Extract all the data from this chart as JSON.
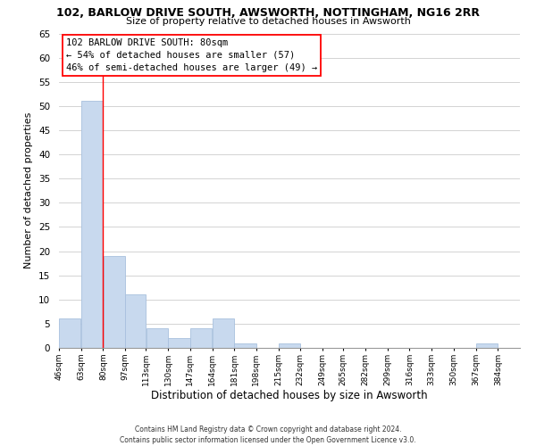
{
  "title_line1": "102, BARLOW DRIVE SOUTH, AWSWORTH, NOTTINGHAM, NG16 2RR",
  "title_line2": "Size of property relative to detached houses in Awsworth",
  "xlabel": "Distribution of detached houses by size in Awsworth",
  "ylabel": "Number of detached properties",
  "bar_left_edges": [
    46,
    63,
    80,
    97,
    113,
    130,
    147,
    164,
    181,
    198,
    215,
    232,
    249,
    265,
    282,
    299,
    316,
    333,
    350,
    367
  ],
  "bar_widths": [
    17,
    17,
    17,
    16,
    17,
    17,
    17,
    17,
    17,
    17,
    17,
    17,
    16,
    17,
    17,
    17,
    17,
    17,
    17,
    17
  ],
  "bar_heights": [
    6,
    51,
    19,
    11,
    4,
    2,
    4,
    6,
    1,
    0,
    1,
    0,
    0,
    0,
    0,
    0,
    0,
    0,
    0,
    1
  ],
  "tick_labels": [
    "46sqm",
    "63sqm",
    "80sqm",
    "97sqm",
    "113sqm",
    "130sqm",
    "147sqm",
    "164sqm",
    "181sqm",
    "198sqm",
    "215sqm",
    "232sqm",
    "249sqm",
    "265sqm",
    "282sqm",
    "299sqm",
    "316sqm",
    "333sqm",
    "350sqm",
    "367sqm",
    "384sqm"
  ],
  "bar_color": "#c8d9ee",
  "bar_edgecolor": "#a8c0de",
  "red_line_x": 80,
  "ylim": [
    0,
    65
  ],
  "yticks": [
    0,
    5,
    10,
    15,
    20,
    25,
    30,
    35,
    40,
    45,
    50,
    55,
    60,
    65
  ],
  "annotation_title": "102 BARLOW DRIVE SOUTH: 80sqm",
  "annotation_line2": "← 54% of detached houses are smaller (57)",
  "annotation_line3": "46% of semi-detached houses are larger (49) →",
  "footer_line1": "Contains HM Land Registry data © Crown copyright and database right 2024.",
  "footer_line2": "Contains public sector information licensed under the Open Government Licence v3.0.",
  "background_color": "#ffffff",
  "grid_color": "#cccccc"
}
